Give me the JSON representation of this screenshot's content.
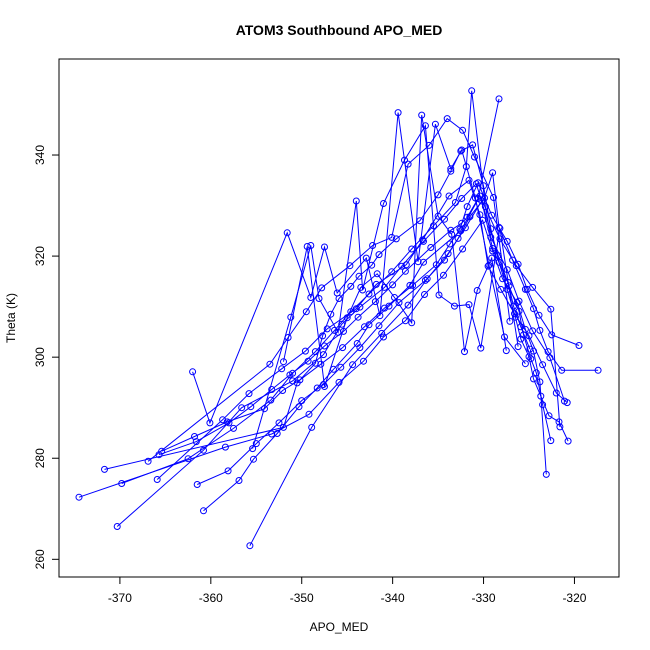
{
  "chart_data": {
    "type": "line",
    "title": "ATOM3 Southbound APO_MED",
    "xlabel": "APO_MED",
    "ylabel": "Theta (K)",
    "xlim": [
      -376.7,
      -315.1
    ],
    "ylim": [
      256.5,
      359
    ],
    "xticks": [
      -370,
      -360,
      -350,
      -340,
      -330,
      -320
    ],
    "yticks": [
      260,
      280,
      300,
      320,
      340
    ],
    "grid": false,
    "color": "#0000ff",
    "marker": "open-circle",
    "series": [
      {
        "x": [
          -371.7,
          -352.0,
          -350.5,
          -348.5,
          -347.7,
          -346.8,
          -345.9,
          -344.6,
          -343.7,
          -342.3,
          -341.5,
          -339.6,
          -337.0,
          -335.0,
          -333.6,
          -332.5,
          -331.2,
          -330.0,
          -329.2,
          -328.3,
          -327.4,
          -326.5,
          -325.9,
          -325.0,
          -324.5,
          -323.7,
          -322.8,
          -321.7,
          -320.7
        ],
        "y": [
          277.8,
          286.1,
          294.9,
          298.8,
          304.2,
          308.5,
          311.6,
          314.0,
          316.0,
          318.2,
          320.3,
          323.4,
          327.0,
          332.1,
          336.8,
          340.8,
          342.0,
          333.9,
          325.4,
          318.8,
          313.4,
          307.9,
          303.6,
          300.1,
          295.7,
          292.3,
          288.4,
          287.2,
          283.4
        ]
      },
      {
        "x": [
          -370.3,
          -360.8,
          -356.6,
          -351.0,
          -347.6,
          -345.6,
          -343.6,
          -340.9,
          -339.0,
          -336.6,
          -334.3,
          -332.4,
          -330.8,
          -328.4,
          -327.2,
          -326.1,
          -325.6,
          -324.8,
          -324.2,
          -323.5,
          -322.6
        ],
        "y": [
          266.5,
          281.6,
          290.0,
          295.3,
          300.5,
          306.5,
          309.9,
          313.8,
          318.0,
          322.9,
          327.3,
          331.4,
          334.3,
          320.1,
          314.1,
          309.1,
          304.4,
          299.7,
          296.9,
          290.6,
          283.5
        ]
      },
      {
        "x": [
          -374.5,
          -358.4,
          -353.3,
          -349.2,
          -345.9,
          -343.2,
          -341.0,
          -338.6,
          -336.5,
          -334.4,
          -332.3,
          -330.1,
          -329.0,
          -327.9,
          -326.3,
          -325.4,
          -324.5,
          -323.8,
          -323.1
        ],
        "y": [
          272.3,
          282.2,
          284.8,
          288.7,
          295.0,
          299.2,
          304.0,
          307.2,
          312.4,
          316.2,
          321.4,
          327.1,
          321.0,
          315.5,
          310.8,
          305.5,
          301.2,
          295.1,
          276.8
        ]
      },
      {
        "x": [
          -365.9,
          -358.7,
          -355.8,
          -352.2,
          -349.6,
          -347.2,
          -344.0,
          -341.8,
          -338.5,
          -336.7,
          -333.8,
          -331.6,
          -330.4,
          -329.5,
          -328.1,
          -326.6,
          -325.0,
          -323.5,
          -322.0,
          -320.8
        ],
        "y": [
          275.8,
          287.6,
          292.8,
          297.7,
          301.2,
          305.6,
          309.6,
          314.4,
          318.3,
          323.2,
          331.9,
          335.0,
          328.2,
          318.0,
          313.4,
          308.6,
          304.2,
          298.5,
          292.9,
          291.0
        ]
      },
      {
        "x": [
          -369.8,
          -362.5,
          -357.5,
          -353.4,
          -351.0,
          -348.5,
          -346.4,
          -344.6,
          -342.6,
          -340.1,
          -337.9,
          -335.5,
          -333.1,
          -331.9,
          -331.3,
          -329.8,
          -329.2,
          -327.4,
          -326.1,
          -324.6,
          -322.7,
          -321.1
        ],
        "y": [
          275.0,
          279.9,
          285.9,
          291.5,
          296.8,
          301.1,
          305.3,
          309.0,
          312.5,
          316.9,
          321.4,
          326.0,
          330.6,
          337.7,
          352.7,
          329.8,
          323.7,
          317.3,
          311.1,
          305.2,
          299.9,
          291.3
        ]
      },
      {
        "x": [
          -365.4,
          -361.8,
          -358.2,
          -354.1,
          -352.1,
          -350.2,
          -347.9,
          -345.5,
          -343.1,
          -340.9,
          -337.8,
          -335.2,
          -333.7,
          -332.6,
          -331.8,
          -330.6,
          -329.1,
          -327.4,
          -326.2,
          -325.2,
          -323.9,
          -322.5,
          -319.5
        ],
        "y": [
          281.4,
          284.3,
          287.2,
          289.8,
          293.4,
          295.5,
          298.6,
          301.9,
          306.0,
          309.7,
          314.2,
          318.3,
          322.4,
          325.3,
          329.8,
          334.5,
          328.1,
          322.9,
          318.4,
          313.4,
          308.3,
          304.4,
          302.3
        ]
      },
      {
        "x": [
          -361.5,
          -358.1,
          -355.0,
          -352.5,
          -350.0,
          -347.6,
          -345.7,
          -343.6,
          -341.5,
          -339.3,
          -336.4,
          -334.3,
          -332.8,
          -331.5,
          -329.9,
          -329.0,
          -328.3,
          -326.8,
          -325.4,
          -324.5,
          -323.8,
          -322.9,
          -321.4,
          -317.4
        ],
        "y": [
          274.8,
          277.5,
          282.9,
          287.0,
          291.4,
          294.6,
          298.0,
          301.9,
          306.2,
          310.8,
          315.2,
          319.2,
          323.5,
          327.8,
          331.5,
          336.5,
          325.7,
          319.2,
          313.4,
          309.6,
          305.3,
          301.1,
          297.4,
          297.4
        ]
      },
      {
        "x": [
          -360.8,
          -356.9,
          -355.3,
          -352.7,
          -350.3,
          -348.3,
          -346.5,
          -343.9,
          -342.6,
          -340.4,
          -338.1,
          -336.6,
          -332.5,
          -330.4,
          -328.2,
          -326.4,
          -324.6,
          -322.6,
          -321.6
        ],
        "y": [
          269.6,
          275.6,
          279.8,
          284.9,
          290.2,
          293.9,
          297.6,
          302.7,
          306.4,
          310.1,
          314.2,
          318.8,
          325.0,
          331.9,
          323.4,
          318.1,
          313.8,
          309.5,
          286.2
        ]
      },
      {
        "x": [
          -365.7,
          -361.6,
          -358.0,
          -355.6,
          -353.3,
          -351.3,
          -349.3,
          -347.5,
          -345.4,
          -343.8,
          -341.9,
          -340.0,
          -338.6,
          -335.8,
          -333.6,
          -332.4,
          -331.8,
          -330.6,
          -328.3
        ],
        "y": [
          280.7,
          283.3,
          287.0,
          290.2,
          293.6,
          296.5,
          299.2,
          302.2,
          305.1,
          307.9,
          311.0,
          314.3,
          317.0,
          321.7,
          325.1,
          326.5,
          327.7,
          331.4,
          351.1
        ]
      },
      {
        "x": [
          -355.7,
          -348.9,
          -344.4,
          -341.2,
          -338.3,
          -336.2,
          -333.9,
          -332.0,
          -330.2,
          -329.0,
          -327.3,
          -326.7,
          -325.9,
          -324.9
        ],
        "y": [
          262.7,
          286.1,
          298.5,
          304.7,
          310.3,
          315.5,
          320.5,
          325.6,
          330.9,
          321.5,
          314.8,
          310.1,
          306.0,
          301.6
        ]
      },
      {
        "x": [
          -362.0,
          -360.1,
          -351.6,
          -349.0,
          -347.5,
          -346.1,
          -342.9,
          -341.4,
          -339.4,
          -337.2,
          -335.3,
          -333.6,
          -332.4,
          -330.9,
          -329.4,
          -327.7,
          -325.4
        ],
        "y": [
          297.1,
          287.0,
          324.6,
          311.8,
          321.8,
          312.7,
          319.6,
          308.2,
          348.4,
          318.9,
          346.1,
          337.3,
          341.0,
          331.5,
          318.2,
          304.0,
          298.7
        ]
      },
      {
        "x": [
          -355.4,
          -351.2,
          -349.0,
          -348.1,
          -346.0,
          -344.0,
          -343.3,
          -341.0,
          -338.7,
          -336.4,
          -334.9,
          -333.2,
          -331.6,
          -330.3,
          -328.2,
          -326.2
        ],
        "y": [
          281.9,
          307.9,
          322.1,
          311.6,
          304.9,
          330.9,
          313.3,
          330.4,
          339.0,
          345.8,
          312.3,
          310.1,
          310.4,
          301.8,
          325.5,
          302.1
        ]
      },
      {
        "x": [
          -352.0,
          -349.4,
          -347.5,
          -345.0,
          -343.5,
          -341.7,
          -339.8,
          -337.9,
          -336.8,
          -335.0,
          -333.5,
          -332.1,
          -330.7,
          -329.1,
          -327.5
        ],
        "y": [
          299.1,
          321.9,
          294.2,
          307.8,
          313.8,
          316.5,
          311.8,
          306.8,
          347.9,
          327.9,
          324.3,
          301.1,
          313.2,
          319.6,
          301.3
        ]
      },
      {
        "x": [
          -366.9,
          -353.5,
          -351.5,
          -349.5,
          -347.8,
          -344.7,
          -342.2,
          -340.1,
          -338.3,
          -336.0,
          -334.0,
          -332.3,
          -331.0,
          -328.9,
          -327.1
        ],
        "y": [
          279.4,
          298.6,
          303.9,
          309.0,
          313.7,
          318.1,
          322.1,
          323.7,
          338.2,
          341.9,
          347.2,
          344.9,
          339.6,
          331.6,
          307.1
        ]
      }
    ]
  }
}
